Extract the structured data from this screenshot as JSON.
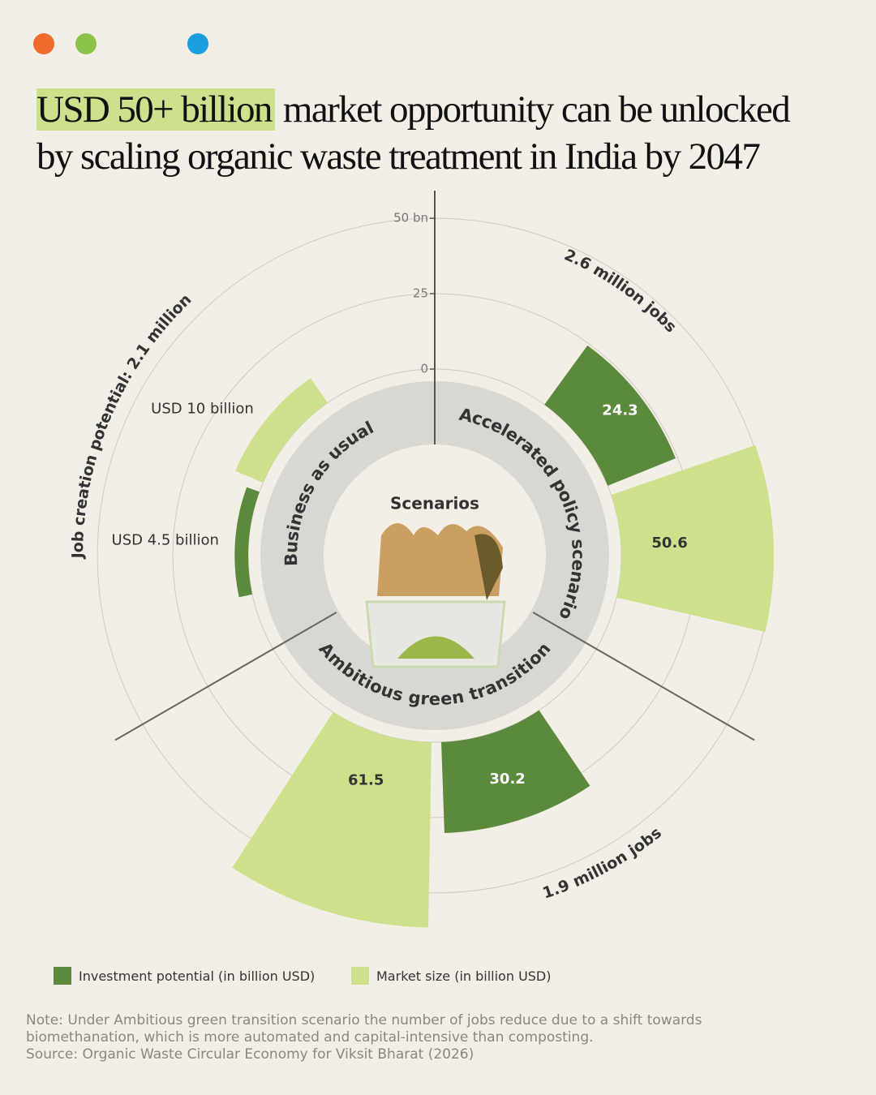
{
  "chart_data": {
    "type": "radial_bar",
    "title_highlight": "USD 50+ billion",
    "title": "market opportunity can be unlocked by scaling organic waste treatment in India by 2047",
    "center_label": "Scenarios",
    "categories": [
      "Business as usual",
      "Accelerated policy scenario",
      "Ambitious green transition"
    ],
    "job_labels": [
      "Job creation potential: 2.1 million",
      "2.6 million jobs",
      "1.9 million jobs"
    ],
    "series": [
      {
        "name": "Investment potential (in billion USD)",
        "color": "#5b8a3c",
        "values": [
          4.5,
          24.3,
          30.2
        ],
        "value_labels": [
          "USD 4.5 billion",
          "24.3",
          "30.2"
        ]
      },
      {
        "name": "Market size (in billion USD)",
        "color": "#cde18c",
        "values": [
          10,
          50.6,
          61.5
        ],
        "value_labels": [
          "USD 10 billion",
          "50.6",
          "61.5"
        ]
      }
    ],
    "ylim": [
      0,
      60
    ],
    "yticks": [
      0,
      25,
      {
        "value": 50,
        "label": "50 bn"
      }
    ],
    "grid": true,
    "note": "Note: Under Ambitious green transition scenario the number of jobs reduce due to a shift towards biomethanation, which is more automated and capital-intensive than composting.",
    "source": "Source: Organic Waste Circular Economy for Viksit Bharat (2026)"
  }
}
